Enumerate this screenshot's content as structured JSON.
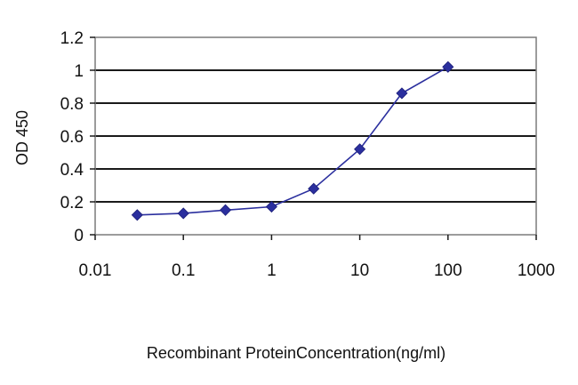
{
  "chart_data": {
    "type": "line",
    "title": "",
    "xlabel": "Recombinant ProteinConcentration(ng/ml)",
    "ylabel": "OD 450",
    "x_scale": "log",
    "xlim": [
      0.01,
      1000
    ],
    "ylim": [
      0,
      1.2
    ],
    "x_ticks": [
      0.01,
      0.1,
      1,
      10,
      100,
      1000
    ],
    "x_tick_labels": [
      "0.01",
      "0.1",
      "1",
      "10",
      "100",
      "1000"
    ],
    "y_ticks": [
      0,
      0.2,
      0.4,
      0.6,
      0.8,
      1,
      1.2
    ],
    "y_tick_labels": [
      "0",
      "0.2",
      "0.4",
      "0.6",
      "0.8",
      "1",
      "1.2"
    ],
    "grid": "horizontal",
    "legend": "none",
    "series": [
      {
        "x": [
          0.03,
          0.1,
          0.3,
          1,
          3,
          10,
          30,
          100
        ],
        "y": [
          0.12,
          0.13,
          0.15,
          0.17,
          0.28,
          0.52,
          0.86,
          1.02
        ],
        "color": "#2b2f9e",
        "marker": "diamond"
      }
    ]
  }
}
